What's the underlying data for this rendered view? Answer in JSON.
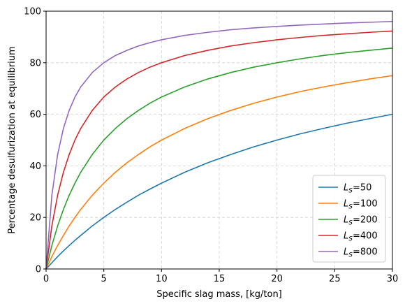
{
  "chart_data": {
    "type": "line",
    "title": "",
    "xlabel": "Specific slag mass, [kg/ton]",
    "ylabel": "Percentage desulfurization at equilibrium",
    "xlim": [
      0,
      30
    ],
    "ylim": [
      0,
      100
    ],
    "xticks": [
      0,
      5,
      10,
      15,
      20,
      25,
      30
    ],
    "yticks": [
      0,
      20,
      40,
      60,
      80,
      100
    ],
    "grid": true,
    "legend_position": "lower-right",
    "x": [
      0,
      0.5,
      1,
      1.5,
      2,
      2.5,
      3,
      4,
      5,
      6,
      7,
      8,
      9,
      10,
      12,
      14,
      16,
      18,
      20,
      22,
      24,
      26,
      28,
      30
    ],
    "series": [
      {
        "name_main": "L",
        "name_sub": "S",
        "name_suffix": "=50",
        "color": "#1f77b4",
        "values": [
          0,
          2.4,
          4.8,
          7.0,
          9.1,
          11.1,
          13.0,
          16.7,
          20.0,
          23.1,
          25.9,
          28.6,
          31.0,
          33.3,
          37.5,
          41.2,
          44.4,
          47.4,
          50.0,
          52.4,
          54.5,
          56.5,
          58.3,
          60.0
        ]
      },
      {
        "name_main": "L",
        "name_sub": "S",
        "name_suffix": "=100",
        "color": "#ff7f0e",
        "values": [
          0,
          4.8,
          9.1,
          13.0,
          16.7,
          20.0,
          23.1,
          28.6,
          33.3,
          37.5,
          41.2,
          44.4,
          47.4,
          50.0,
          54.5,
          58.3,
          61.5,
          64.3,
          66.7,
          68.8,
          70.6,
          72.2,
          73.7,
          75.0
        ]
      },
      {
        "name_main": "L",
        "name_sub": "S",
        "name_suffix": "=200",
        "color": "#2ca02c",
        "values": [
          0,
          9.1,
          16.7,
          23.1,
          28.6,
          33.3,
          37.5,
          44.4,
          50.0,
          54.5,
          58.3,
          61.5,
          64.3,
          66.7,
          70.6,
          73.7,
          76.2,
          78.3,
          80.0,
          81.5,
          82.8,
          83.9,
          84.8,
          85.7
        ]
      },
      {
        "name_main": "L",
        "name_sub": "S",
        "name_suffix": "=400",
        "color": "#d62728",
        "values": [
          0,
          16.7,
          28.6,
          37.5,
          44.4,
          50.0,
          54.5,
          61.5,
          66.7,
          70.6,
          73.7,
          76.2,
          78.3,
          80.0,
          82.8,
          84.8,
          86.5,
          87.8,
          88.9,
          89.8,
          90.6,
          91.2,
          91.8,
          92.3
        ]
      },
      {
        "name_main": "L",
        "name_sub": "S",
        "name_suffix": "=800",
        "color": "#9467bd",
        "values": [
          0,
          28.6,
          44.4,
          54.5,
          61.5,
          66.7,
          70.6,
          76.2,
          80.0,
          82.8,
          84.8,
          86.5,
          87.8,
          88.9,
          90.6,
          91.8,
          92.8,
          93.5,
          94.1,
          94.6,
          95.0,
          95.4,
          95.7,
          96.0
        ]
      }
    ]
  }
}
